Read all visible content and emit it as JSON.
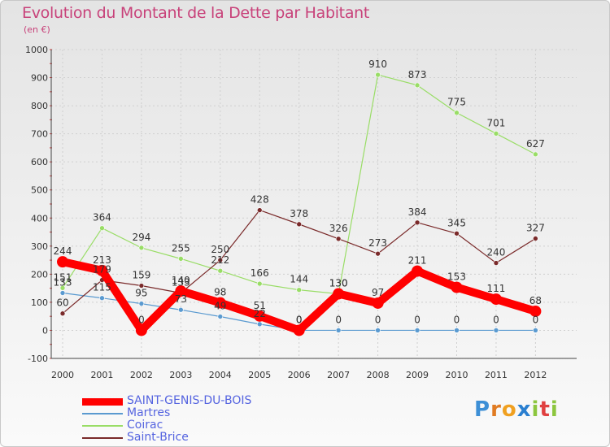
{
  "title": "Evolution du Montant de la Dette par Habitant",
  "subtitle": "(en €)",
  "logo": {
    "text": "Proxiti",
    "colors": [
      "#3d8fd6",
      "#e07b22",
      "#f0a020",
      "#2a7fd0",
      "#8cc63e",
      "#e04040",
      "#8cc63e"
    ]
  },
  "chart_data": {
    "type": "line",
    "x": [
      2000,
      2001,
      2002,
      2003,
      2004,
      2005,
      2006,
      2007,
      2008,
      2009,
      2010,
      2011,
      2012
    ],
    "ylim": [
      -100,
      1000
    ],
    "yticks": [
      -100,
      0,
      100,
      200,
      300,
      400,
      500,
      600,
      700,
      800,
      900,
      1000
    ],
    "grid": true,
    "legend_position": "bottom-left",
    "series": [
      {
        "name": "SAINT-GENIS-DU-BOIS",
        "color": "#ff0000",
        "width": 10,
        "marker": 7,
        "values": [
          244,
          213,
          0,
          140,
          98,
          51,
          0,
          130,
          97,
          211,
          153,
          111,
          68
        ],
        "labels": [
          "244",
          "213",
          "0",
          "140",
          "98",
          "51",
          "0",
          "130",
          "97",
          "211",
          "153",
          "111",
          "68"
        ]
      },
      {
        "name": "Martres",
        "color": "#5a9ad0",
        "width": 1.2,
        "marker": 3,
        "values": [
          133,
          115,
          95,
          73,
          49,
          22,
          0,
          0,
          0,
          0,
          0,
          0,
          0
        ],
        "labels": [
          "133",
          "115",
          "95",
          "73",
          "49",
          "22",
          "0",
          "0",
          "0",
          "0",
          "0",
          "0",
          "0"
        ]
      },
      {
        "name": "Coirac",
        "color": "#99dd66",
        "width": 1.2,
        "marker": 3,
        "values": [
          151,
          364,
          294,
          255,
          212,
          166,
          144,
          130,
          910,
          873,
          775,
          701,
          627
        ],
        "labels": [
          "151",
          "364",
          "294",
          "255",
          "212",
          "166",
          "144",
          "130",
          "910",
          "873",
          "775",
          "701",
          "627"
        ]
      },
      {
        "name": "Saint-Brice",
        "color": "#7a2a2a",
        "width": 1.2,
        "marker": 3,
        "values": [
          60,
          179,
          159,
          133,
          250,
          428,
          378,
          326,
          273,
          384,
          345,
          240,
          327
        ],
        "labels": [
          "60",
          "179",
          "159",
          "133",
          "250",
          "428",
          "378",
          "326",
          "273",
          "384",
          "345",
          "240",
          "327"
        ]
      }
    ]
  }
}
